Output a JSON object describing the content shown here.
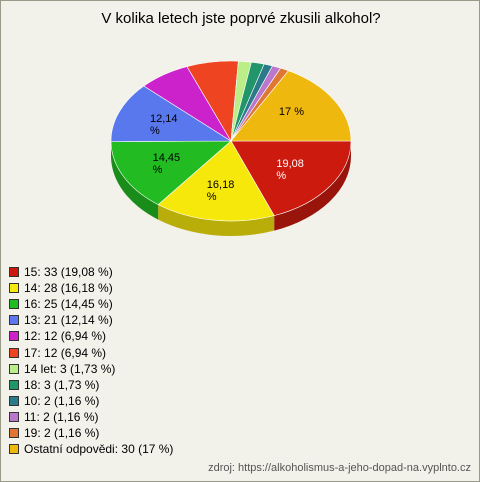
{
  "chart_data": {
    "type": "pie3d",
    "title": "V kolika letech jste poprvé zkusili alkohol?",
    "categories": [
      "15: 33 (19,08 %)",
      "14: 28 (16,18 %)",
      "16: 25 (14,45 %)",
      "13: 21 (12,14 %)",
      "12: 12 (6,94 %)",
      "17: 12 (6,94 %)",
      "14 let: 3 (1,73 %)",
      "18: 3 (1,73 %)",
      "10: 2 (1,16 %)",
      "11: 2 (1,16 %)",
      "19: 2 (1,16 %)",
      "Ostatní odpovědi: 30 (17 %)"
    ],
    "values": [
      19.08,
      16.18,
      14.45,
      12.14,
      6.94,
      6.94,
      1.73,
      1.73,
      1.16,
      1.16,
      1.16,
      17
    ],
    "value_labels": [
      "19,08 %",
      "16,18 %",
      "14,45 %",
      "12,14 %",
      null,
      null,
      null,
      null,
      null,
      null,
      null,
      "17 %"
    ],
    "colors": [
      "#cc1a0e",
      "#f7e80c",
      "#22bb22",
      "#5a78ee",
      "#cc22cc",
      "#ee4422",
      "#bbee88",
      "#22966a",
      "#2a7a8a",
      "#bb77cc",
      "#dd7733",
      "#eeb80e"
    ],
    "source": "zdroj: https://alkoholismus-a-jeho-dopad-na.vyplnto.cz"
  }
}
